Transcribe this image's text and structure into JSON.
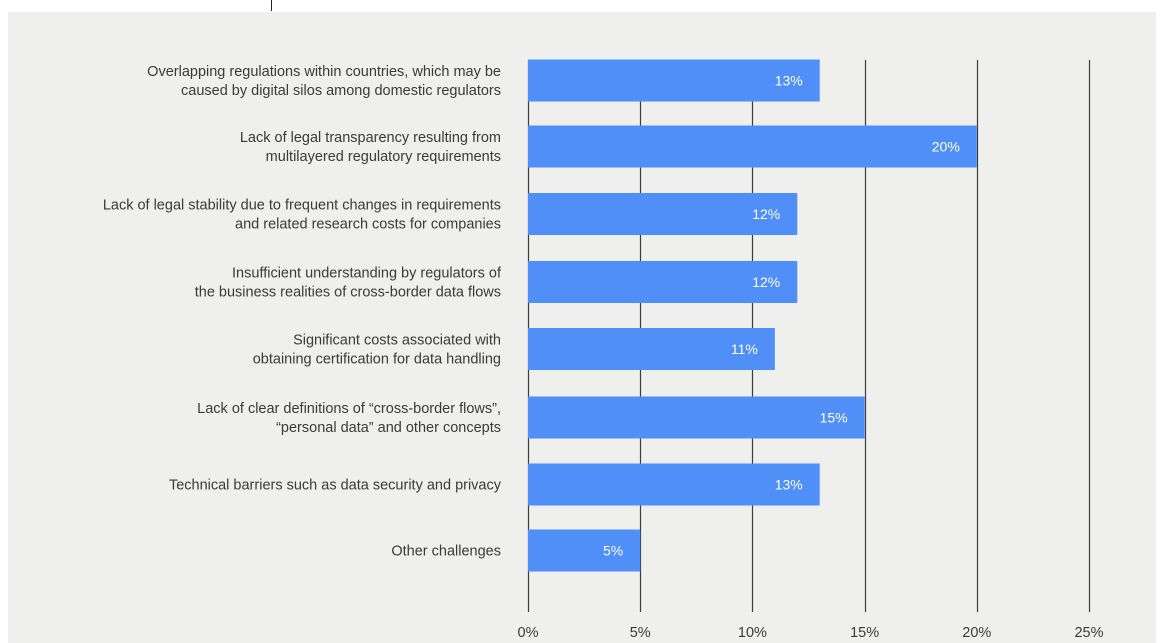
{
  "chart_data": {
    "type": "bar",
    "orientation": "horizontal",
    "categories": [
      [
        "Overlapping regulations within countries, which may be",
        "caused by digital silos among domestic regulators"
      ],
      [
        "Lack of legal transparency resulting from",
        "multilayered regulatory requirements"
      ],
      [
        "Lack of legal stability due to frequent changes in requirements",
        "and related research costs for companies"
      ],
      [
        "Insufficient understanding by regulators of",
        "the business realities of cross-border data flows"
      ],
      [
        "Significant costs associated with",
        "obtaining certification for data handling"
      ],
      [
        "Lack of clear definitions of “cross-border flows”,",
        "“personal data” and other concepts"
      ],
      [
        "Technical barriers such as data security and privacy"
      ],
      [
        "Other challenges"
      ]
    ],
    "values": [
      13,
      20,
      12,
      12,
      11,
      15,
      13,
      5
    ],
    "value_labels": [
      "13%",
      "20%",
      "12%",
      "12%",
      "11%",
      "15%",
      "13%",
      "5%"
    ],
    "xlim": [
      0,
      25
    ],
    "xticks": [
      0,
      5,
      10,
      15,
      20,
      25
    ],
    "xtick_labels": [
      "0%",
      "5%",
      "10%",
      "15%",
      "20%",
      "25%"
    ],
    "grid": true,
    "colors": {
      "bar": "#4f8ff7",
      "grid": "#3c3c3c",
      "panel": "#efefed",
      "text": "#3a3a3a",
      "value_text": "#ffffff"
    }
  }
}
